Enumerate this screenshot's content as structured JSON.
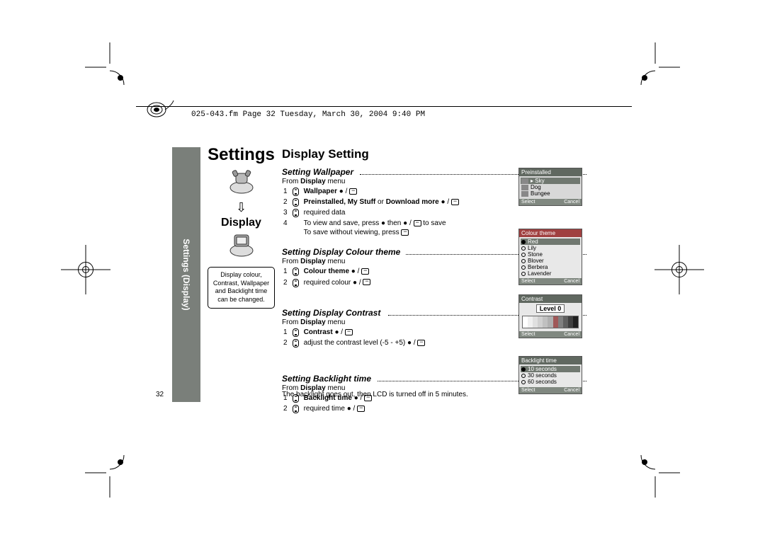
{
  "header": {
    "file_info": "025-043.fm  Page 32  Tuesday, March 30, 2004  9:40 PM"
  },
  "sidebar": {
    "label": "Settings (Display)"
  },
  "left": {
    "title": "Settings",
    "subtitle": "Display",
    "desc": "Display colour, Contrast, Wallpaper and Backlight time can be changed."
  },
  "main_title": "Display Setting",
  "wallpaper": {
    "heading": "Setting Wallpaper",
    "from_pre": "From ",
    "from_bold": "Display",
    "from_post": " menu",
    "s1_bold": "Wallpaper",
    "s1_post": " ● / ",
    "s2_bold": "Preinstalled, My Stuff",
    "s2_mid": " or ",
    "s2_bold2": "Download more",
    "s2_post": " ● / ",
    "s3": "required data",
    "s4a": "To view and save, press ● then ● / ",
    "s4a2": " to save",
    "s4b": "To save without viewing, press ",
    "thumb": {
      "header": "Preinstalled",
      "items": [
        {
          "label": "Sky",
          "sel": true
        },
        {
          "label": "Dog",
          "sel": false
        },
        {
          "label": "Bungee",
          "sel": false
        }
      ],
      "left": "Select",
      "right": "Cancel"
    }
  },
  "colour": {
    "heading": "Setting Display Colour theme",
    "from_pre": "From ",
    "from_bold": "Display",
    "from_post": " menu",
    "s1_bold": "Colour theme",
    "s1_post": " ● / ",
    "s2": "required colour ● / ",
    "thumb": {
      "header": "Colour theme",
      "items": [
        {
          "label": "Red",
          "sel": true
        },
        {
          "label": "Lily",
          "sel": false
        },
        {
          "label": "Stone",
          "sel": false
        },
        {
          "label": "Blover",
          "sel": false
        },
        {
          "label": "Berbera",
          "sel": false
        },
        {
          "label": "Lavender",
          "sel": false
        }
      ],
      "left": "Select",
      "right": "Cancel"
    }
  },
  "contrast": {
    "heading": "Setting Display Contrast",
    "from_pre": "From ",
    "from_bold": "Display",
    "from_post": " menu",
    "s1_bold": "Contrast",
    "s1_post": " ● / ",
    "s2": "adjust the contrast level (-5 - +5) ● / ",
    "thumb": {
      "header": "Contrast",
      "level_label": "Level  0",
      "left": "Select",
      "right": "Cancel",
      "bar_colors": [
        "#ffffff",
        "#f0f0f0",
        "#e0e0e0",
        "#d0d0d0",
        "#c0c0c0",
        "#b0b0b0",
        "#a05858",
        "#808080",
        "#606060",
        "#404040",
        "#202020"
      ]
    }
  },
  "backlight": {
    "heading": "Setting Backlight time",
    "from_pre": "From ",
    "from_bold": "Display",
    "from_post": " menu",
    "s1_bold": "Backlight time",
    "s1_post": " ● / ",
    "s2": "required time ● / ",
    "thumb": {
      "header": "Backlight time",
      "items": [
        {
          "label": "10 seconds",
          "sel": true
        },
        {
          "label": "30 seconds",
          "sel": false
        },
        {
          "label": "60 seconds",
          "sel": false
        }
      ],
      "left": "Select",
      "right": "Cancel"
    }
  },
  "footnote": "The backlight goes out, then LCD is turned off in 5 minutes.",
  "page_num": "32"
}
